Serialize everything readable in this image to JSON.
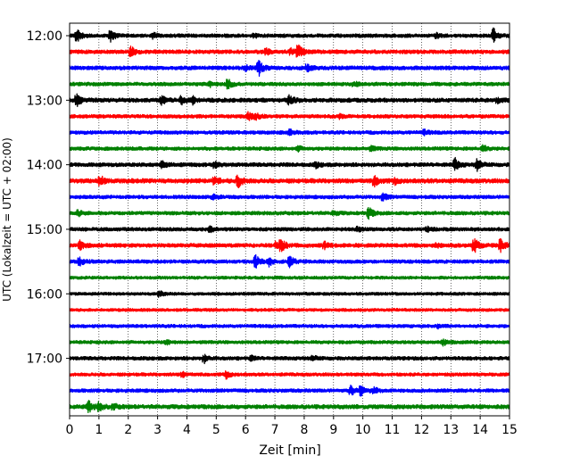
{
  "chart_data": {
    "type": "line",
    "title": "",
    "xlabel": "Zeit  [min]",
    "ylabel": "UTC (Lokalzeit = UTC + 02:00)",
    "xlim": [
      0,
      15
    ],
    "x_ticks": [
      0,
      1,
      2,
      3,
      4,
      5,
      6,
      7,
      8,
      9,
      10,
      11,
      12,
      13,
      14,
      15
    ],
    "grid": "vertical-dotted",
    "legend": "none",
    "trace_interval_min": 15,
    "row_labels": [
      "12:00",
      "13:00",
      "14:00",
      "15:00",
      "16:00",
      "17:00"
    ],
    "colors": [
      "#000000",
      "#ff0000",
      "#0000ff",
      "#008000"
    ],
    "series": [
      {
        "start": "12:00",
        "color": "#000000",
        "noise": 0.5,
        "events": [
          [
            0.25,
            3.2
          ],
          [
            1.4,
            2.6
          ],
          [
            2.85,
            1.2
          ],
          [
            6.3,
            1.0
          ],
          [
            12.5,
            1.2
          ],
          [
            14.45,
            3.8
          ]
        ]
      },
      {
        "start": "12:15",
        "color": "#ff0000",
        "noise": 0.6,
        "events": [
          [
            2.1,
            2.4
          ],
          [
            7.55,
            1.4
          ],
          [
            7.8,
            3.6
          ],
          [
            6.7,
            1.2
          ]
        ]
      },
      {
        "start": "12:30",
        "color": "#0000ff",
        "noise": 0.6,
        "events": [
          [
            6.45,
            3.8
          ],
          [
            8.1,
            1.6
          ],
          [
            6.0,
            1.2
          ]
        ]
      },
      {
        "start": "12:45",
        "color": "#008000",
        "noise": 0.5,
        "events": [
          [
            5.4,
            2.4
          ],
          [
            4.8,
            1.0
          ],
          [
            9.7,
            1.0
          ]
        ]
      },
      {
        "start": "13:00",
        "color": "#000000",
        "noise": 0.7,
        "events": [
          [
            0.25,
            2.8
          ],
          [
            3.15,
            2.2
          ],
          [
            3.8,
            2.0
          ],
          [
            4.2,
            1.6
          ],
          [
            7.5,
            2.2
          ],
          [
            14.6,
            1.0
          ]
        ]
      },
      {
        "start": "13:15",
        "color": "#ff0000",
        "noise": 0.5,
        "events": [
          [
            6.1,
            1.8
          ],
          [
            6.35,
            1.2
          ],
          [
            9.2,
            1.0
          ]
        ]
      },
      {
        "start": "13:30",
        "color": "#0000ff",
        "noise": 0.5,
        "events": [
          [
            7.5,
            1.4
          ],
          [
            12.1,
            1.0
          ]
        ]
      },
      {
        "start": "13:45",
        "color": "#008000",
        "noise": 0.5,
        "events": [
          [
            14.1,
            1.4
          ],
          [
            10.3,
            1.0
          ],
          [
            7.8,
            1.0
          ]
        ]
      },
      {
        "start": "14:00",
        "color": "#000000",
        "noise": 0.6,
        "events": [
          [
            3.15,
            1.8
          ],
          [
            4.95,
            1.4
          ],
          [
            8.4,
            1.2
          ],
          [
            13.15,
            2.8
          ],
          [
            13.9,
            2.6
          ]
        ]
      },
      {
        "start": "14:15",
        "color": "#ff0000",
        "noise": 0.8,
        "events": [
          [
            1.05,
            2.2
          ],
          [
            4.95,
            1.6
          ],
          [
            5.75,
            3.0
          ],
          [
            10.4,
            2.4
          ],
          [
            11.1,
            1.2
          ]
        ]
      },
      {
        "start": "14:30",
        "color": "#0000ff",
        "noise": 0.5,
        "events": [
          [
            4.9,
            1.2
          ],
          [
            10.7,
            1.8
          ]
        ]
      },
      {
        "start": "14:45",
        "color": "#008000",
        "noise": 0.5,
        "events": [
          [
            0.3,
            1.2
          ],
          [
            10.2,
            2.8
          ],
          [
            9.0,
            1.0
          ]
        ]
      },
      {
        "start": "15:00",
        "color": "#000000",
        "noise": 0.5,
        "events": [
          [
            4.8,
            1.2
          ],
          [
            9.8,
            1.2
          ],
          [
            12.2,
            1.0
          ]
        ]
      },
      {
        "start": "15:15",
        "color": "#ff0000",
        "noise": 0.6,
        "events": [
          [
            0.35,
            2.2
          ],
          [
            7.2,
            3.0
          ],
          [
            7.05,
            1.8
          ],
          [
            8.7,
            1.4
          ],
          [
            13.8,
            3.4
          ],
          [
            14.7,
            3.6
          ],
          [
            12.5,
            1.0
          ]
        ]
      },
      {
        "start": "15:30",
        "color": "#0000ff",
        "noise": 0.5,
        "events": [
          [
            0.35,
            2.2
          ],
          [
            6.35,
            2.8
          ],
          [
            6.8,
            2.0
          ],
          [
            7.5,
            2.6
          ]
        ]
      },
      {
        "start": "15:45",
        "color": "#008000",
        "noise": 0.3,
        "events": []
      },
      {
        "start": "16:00",
        "color": "#000000",
        "noise": 0.3,
        "events": [
          [
            3.05,
            1.4
          ]
        ]
      },
      {
        "start": "16:15",
        "color": "#ff0000",
        "noise": 0.3,
        "events": []
      },
      {
        "start": "16:30",
        "color": "#0000ff",
        "noise": 0.4,
        "events": [
          [
            12.6,
            1.0
          ]
        ]
      },
      {
        "start": "16:45",
        "color": "#008000",
        "noise": 0.4,
        "events": [
          [
            12.75,
            1.4
          ],
          [
            3.3,
            1.0
          ]
        ]
      },
      {
        "start": "17:00",
        "color": "#000000",
        "noise": 0.5,
        "events": [
          [
            4.6,
            1.8
          ],
          [
            6.2,
            1.0
          ],
          [
            8.3,
            1.0
          ]
        ]
      },
      {
        "start": "17:15",
        "color": "#ff0000",
        "noise": 0.4,
        "events": [
          [
            3.85,
            1.2
          ],
          [
            5.35,
            1.8
          ]
        ]
      },
      {
        "start": "17:30",
        "color": "#0000ff",
        "noise": 0.5,
        "events": [
          [
            9.6,
            2.2
          ],
          [
            9.95,
            2.6
          ],
          [
            10.4,
            1.4
          ]
        ]
      },
      {
        "start": "17:45",
        "color": "#008000",
        "noise": 0.7,
        "events": [
          [
            0.65,
            2.6
          ],
          [
            1.0,
            1.8
          ],
          [
            1.5,
            1.2
          ]
        ]
      }
    ]
  }
}
